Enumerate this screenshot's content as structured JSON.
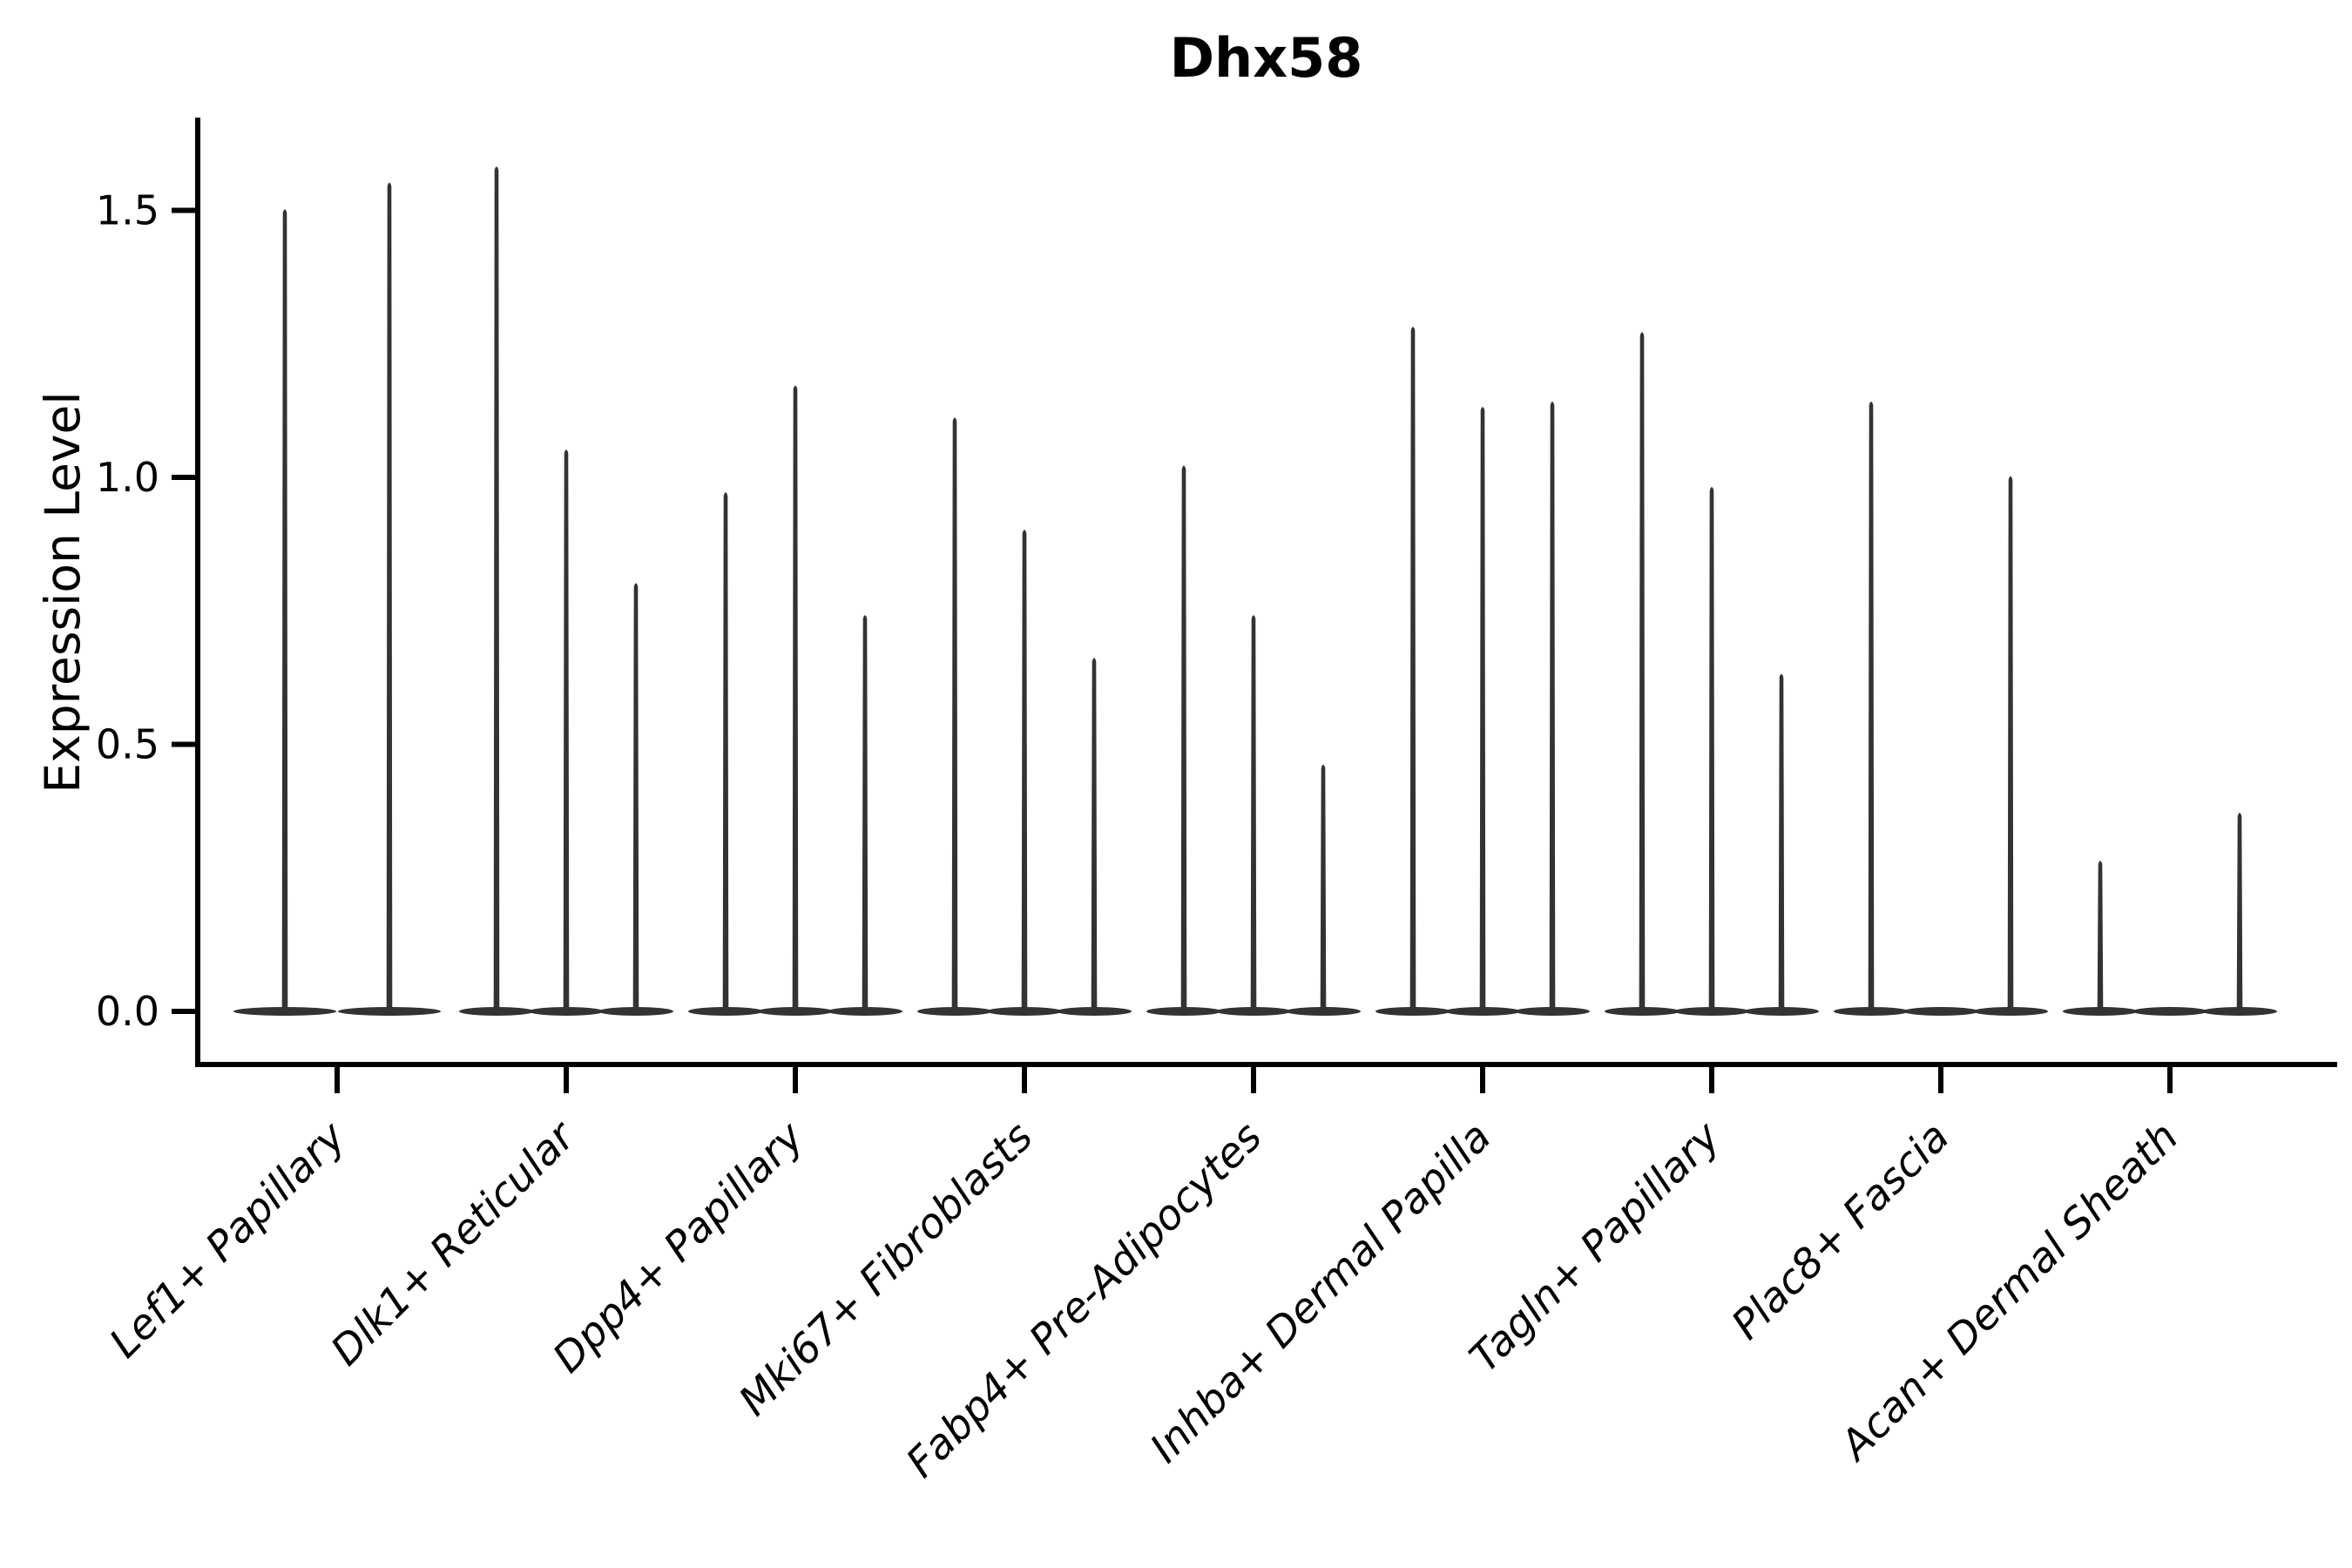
{
  "figure": {
    "title": "Dhx58",
    "y_axis_label": "Expression Level"
  },
  "chart_data": {
    "type": "violin",
    "title": "Dhx58",
    "xlabel": "",
    "ylabel": "Expression Level",
    "ylim": [
      -0.1,
      1.67
    ],
    "yticks": [
      0.0,
      0.5,
      1.0,
      1.5
    ],
    "ytick_labels": [
      "0.0",
      "0.5",
      "1.0",
      "1.5"
    ],
    "grid": false,
    "legend": "none",
    "violin_color": "#333333",
    "axis_color": "#000000",
    "background_color": "#ffffff",
    "description": "Violin plot of Dhx58 expression level per cell type; each category holds 2-3 near-zero flat violins with thin maximum-expression spikes. 'max' is the top of each spike in Expression Level units; 'dx' is the horizontal offset of the violin from the category tick.",
    "categories": [
      {
        "label": "Lef1+ Papillary",
        "violins": [
          {
            "dx": -60,
            "width": 118,
            "max": 1.5
          },
          {
            "dx": 60,
            "width": 118,
            "max": 1.55
          }
        ]
      },
      {
        "label": "Dlk1+ Reticular",
        "violins": [
          {
            "dx": -80,
            "width": 86,
            "max": 1.58
          },
          {
            "dx": 0,
            "width": 86,
            "max": 1.05
          },
          {
            "dx": 80,
            "width": 86,
            "max": 0.8
          }
        ]
      },
      {
        "label": "Dpp4+ Papillary",
        "violins": [
          {
            "dx": -80,
            "width": 86,
            "max": 0.97
          },
          {
            "dx": 0,
            "width": 86,
            "max": 1.17
          },
          {
            "dx": 80,
            "width": 86,
            "max": 0.74
          }
        ]
      },
      {
        "label": "Mki67+ Fibroblasts",
        "violins": [
          {
            "dx": -80,
            "width": 86,
            "max": 1.11
          },
          {
            "dx": 0,
            "width": 86,
            "max": 0.9
          },
          {
            "dx": 80,
            "width": 86,
            "max": 0.66
          }
        ]
      },
      {
        "label": "Fabp4+ Pre-Adipocytes",
        "violins": [
          {
            "dx": -80,
            "width": 86,
            "max": 1.02
          },
          {
            "dx": 0,
            "width": 86,
            "max": 0.74
          },
          {
            "dx": 80,
            "width": 86,
            "max": 0.46
          }
        ]
      },
      {
        "label": "Inhba+ Dermal Papilla",
        "violins": [
          {
            "dx": -80,
            "width": 86,
            "max": 1.28
          },
          {
            "dx": 0,
            "width": 86,
            "max": 1.13
          },
          {
            "dx": 80,
            "width": 86,
            "max": 1.14
          }
        ]
      },
      {
        "label": "Tagln+ Papillary",
        "violins": [
          {
            "dx": -80,
            "width": 86,
            "max": 1.27
          },
          {
            "dx": 0,
            "width": 86,
            "max": 0.98
          },
          {
            "dx": 80,
            "width": 86,
            "max": 0.63
          }
        ]
      },
      {
        "label": "Plac8+ Fascia",
        "violins": [
          {
            "dx": -80,
            "width": 86,
            "max": 1.14
          },
          {
            "dx": 0,
            "width": 86,
            "max": 0.0
          },
          {
            "dx": 80,
            "width": 86,
            "max": 1.0
          }
        ]
      },
      {
        "label": "Acan+ Dermal Sheath",
        "violins": [
          {
            "dx": -80,
            "width": 86,
            "max": 0.28
          },
          {
            "dx": 0,
            "width": 86,
            "max": 0.0
          },
          {
            "dx": 80,
            "width": 86,
            "max": 0.37
          }
        ]
      }
    ]
  }
}
